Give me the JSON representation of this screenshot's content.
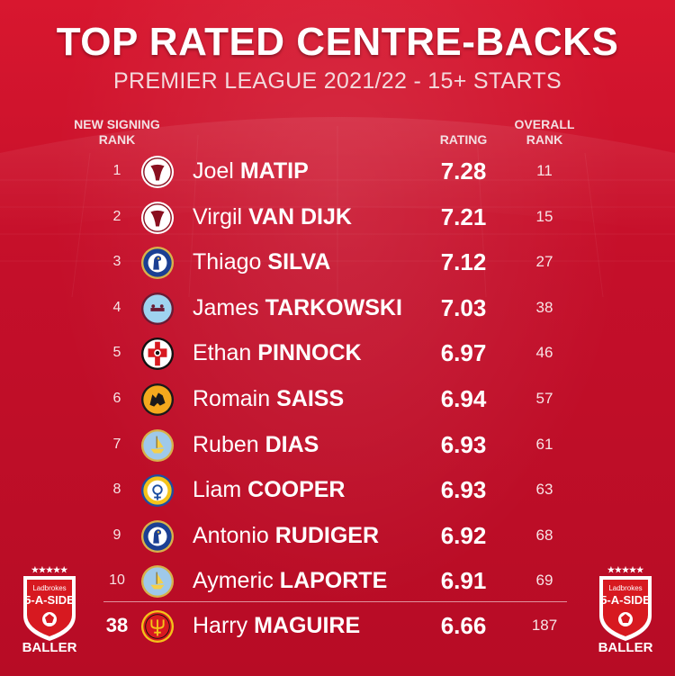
{
  "title": "TOP RATED CENTRE-BACKS",
  "subtitle": "PREMIER LEAGUE 2021/22 - 15+ STARTS",
  "headers": {
    "signing_rank_line1": "NEW SIGNING",
    "signing_rank_line2": "RANK",
    "rating": "RATING",
    "overall_line1": "OVERALL",
    "overall_line2": "RANK"
  },
  "players": [
    {
      "rank": "1",
      "first": "Joel",
      "last": "MATIP",
      "rating": "7.28",
      "overall": "11",
      "crest": "liverpool-crest"
    },
    {
      "rank": "2",
      "first": "Virgil",
      "last": "VAN DIJK",
      "rating": "7.21",
      "overall": "15",
      "crest": "liverpool-crest"
    },
    {
      "rank": "3",
      "first": "Thiago",
      "last": "SILVA",
      "rating": "7.12",
      "overall": "27",
      "crest": "chelsea-crest"
    },
    {
      "rank": "4",
      "first": "James",
      "last": "TARKOWSKI",
      "rating": "7.03",
      "overall": "38",
      "crest": "burnley-crest"
    },
    {
      "rank": "5",
      "first": "Ethan",
      "last": "PINNOCK",
      "rating": "6.97",
      "overall": "46",
      "crest": "brentford-crest"
    },
    {
      "rank": "6",
      "first": "Romain",
      "last": "SAISS",
      "rating": "6.94",
      "overall": "57",
      "crest": "wolves-crest"
    },
    {
      "rank": "7",
      "first": "Ruben",
      "last": "DIAS",
      "rating": "6.93",
      "overall": "61",
      "crest": "man-city-crest"
    },
    {
      "rank": "8",
      "first": "Liam",
      "last": "COOPER",
      "rating": "6.93",
      "overall": "63",
      "crest": "leeds-crest"
    },
    {
      "rank": "9",
      "first": "Antonio",
      "last": "RUDIGER",
      "rating": "6.92",
      "overall": "68",
      "crest": "chelsea-crest"
    },
    {
      "rank": "10",
      "first": "Aymeric",
      "last": "LAPORTE",
      "rating": "6.91",
      "overall": "69",
      "crest": "man-city-crest"
    }
  ],
  "featured": {
    "rank": "38",
    "first": "Harry",
    "last": "MAGUIRE",
    "rating": "6.66",
    "overall": "187",
    "crest": "man-utd-crest"
  },
  "badge": {
    "brand": "Ladbrokes",
    "line1": "5-A-SIDE",
    "line2": "BALLER",
    "stars": "★★★★★"
  },
  "colors": {
    "background": "#c8102e",
    "text": "#ffffff"
  }
}
